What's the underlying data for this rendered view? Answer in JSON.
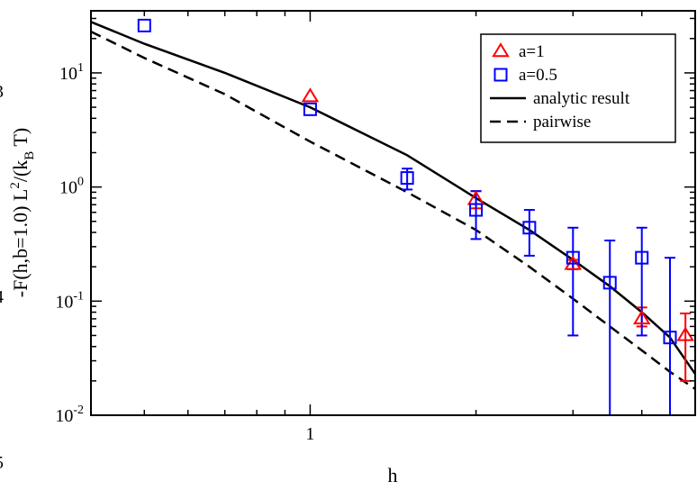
{
  "chart_data": {
    "type": "scatter",
    "xlabel": "h",
    "ylabel": "-F(h,b=1.0) L²/(k_B T)",
    "xscale": "log",
    "yscale": "log",
    "xlim": [
      0.4,
      5.0
    ],
    "ylim": [
      0.01,
      35
    ],
    "xtick_labels": [
      {
        "value": 1,
        "label": "1"
      }
    ],
    "ytick_labels": [
      {
        "value": 0.01,
        "base": "10",
        "exp": "-2"
      },
      {
        "value": 0.1,
        "base": "10",
        "exp": "-1"
      },
      {
        "value": 1,
        "base": "10",
        "exp": "0"
      },
      {
        "value": 10,
        "base": "10",
        "exp": "1"
      }
    ],
    "grid": false,
    "legend_position": "top-right",
    "series": [
      {
        "name": "a=1",
        "marker": "triangle",
        "color": "#ff0000",
        "points": [
          {
            "x": 1.0,
            "y": 6.2
          },
          {
            "x": 2.0,
            "y": 0.78,
            "yerr_low": 0.65,
            "yerr_high": 0.92
          },
          {
            "x": 3.0,
            "y": 0.21,
            "yerr_low": 0.19,
            "yerr_high": 0.23
          },
          {
            "x": 4.0,
            "y": 0.07,
            "yerr_low": 0.06,
            "yerr_high": 0.088
          },
          {
            "x": 4.8,
            "y": 0.05,
            "yerr_low": 0.02,
            "yerr_high": 0.078
          }
        ]
      },
      {
        "name": "a=0.5",
        "marker": "square",
        "color": "#0000ff",
        "points": [
          {
            "x": 0.5,
            "y": 26
          },
          {
            "x": 1.0,
            "y": 4.8
          },
          {
            "x": 1.5,
            "y": 1.2,
            "yerr_low": 0.95,
            "yerr_high": 1.45
          },
          {
            "x": 2.0,
            "y": 0.63,
            "yerr_low": 0.35,
            "yerr_high": 0.92
          },
          {
            "x": 2.5,
            "y": 0.44,
            "yerr_low": 0.25,
            "yerr_high": 0.63
          },
          {
            "x": 3.0,
            "y": 0.24,
            "yerr_low": 0.05,
            "yerr_high": 0.44
          },
          {
            "x": 3.5,
            "y": 0.145,
            "yerr_low": 0.009,
            "yerr_high": 0.34
          },
          {
            "x": 4.0,
            "y": 0.24,
            "yerr_low": 0.05,
            "yerr_high": 0.44
          },
          {
            "x": 4.5,
            "y": 0.048,
            "yerr_low": 0.009,
            "yerr_high": 0.24
          }
        ]
      },
      {
        "name": "analytic result",
        "line_style": "solid",
        "color": "#000000",
        "points": [
          {
            "x": 0.4,
            "y": 28
          },
          {
            "x": 0.5,
            "y": 18
          },
          {
            "x": 0.7,
            "y": 10
          },
          {
            "x": 1.0,
            "y": 5.0
          },
          {
            "x": 1.5,
            "y": 1.9
          },
          {
            "x": 2.0,
            "y": 0.8
          },
          {
            "x": 2.5,
            "y": 0.42
          },
          {
            "x": 3.0,
            "y": 0.23
          },
          {
            "x": 3.5,
            "y": 0.135
          },
          {
            "x": 4.0,
            "y": 0.08
          },
          {
            "x": 4.5,
            "y": 0.048
          },
          {
            "x": 5.0,
            "y": 0.023
          }
        ]
      },
      {
        "name": "pairwise",
        "line_style": "dashed",
        "color": "#000000",
        "points": [
          {
            "x": 0.4,
            "y": 23
          },
          {
            "x": 0.5,
            "y": 13.5
          },
          {
            "x": 0.7,
            "y": 6.5
          },
          {
            "x": 1.0,
            "y": 2.5
          },
          {
            "x": 1.5,
            "y": 0.9
          },
          {
            "x": 2.0,
            "y": 0.42
          },
          {
            "x": 2.5,
            "y": 0.2
          },
          {
            "x": 3.0,
            "y": 0.105
          },
          {
            "x": 3.5,
            "y": 0.06
          },
          {
            "x": 4.0,
            "y": 0.037
          },
          {
            "x": 4.5,
            "y": 0.024
          },
          {
            "x": 5.0,
            "y": 0.017
          }
        ]
      }
    ]
  }
}
